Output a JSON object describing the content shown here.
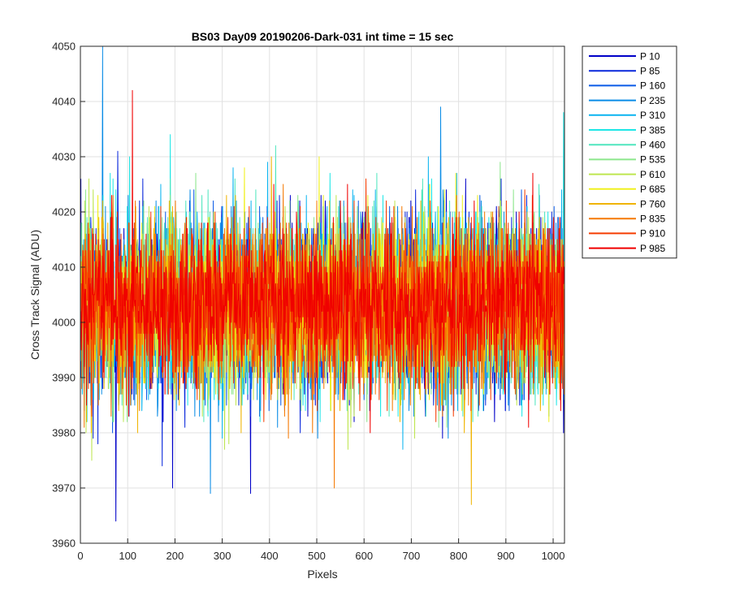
{
  "chart_data": {
    "type": "line",
    "title": "BS03 Day09 20190206-Dark-031 int time = 15 sec",
    "xlabel": "Pixels",
    "ylabel": "Cross Track Signal (ADU)",
    "xlim": [
      0,
      1024
    ],
    "ylim": [
      3960,
      4050
    ],
    "x_ticks": [
      "0",
      "100",
      "200",
      "300",
      "400",
      "500",
      "600",
      "700",
      "800",
      "900",
      "1000"
    ],
    "y_ticks": [
      "3960",
      "3970",
      "3980",
      "3990",
      "4000",
      "4010",
      "4020",
      "4030",
      "4040",
      "4050"
    ],
    "grid": true,
    "legend_position": "outside-top-right",
    "n_points_per_series": 1024,
    "series": [
      {
        "name": "P 10",
        "color": "#0000c8",
        "mean": 4003,
        "sd": 8.2
      },
      {
        "name": "P 85",
        "color": "#0a28dc",
        "mean": 4003,
        "sd": 8.0
      },
      {
        "name": "P 160",
        "color": "#0a5ae6",
        "mean": 4003,
        "sd": 8.0
      },
      {
        "name": "P 235",
        "color": "#0a8ce6",
        "mean": 4003,
        "sd": 7.9
      },
      {
        "name": "P 310",
        "color": "#0ab4f0",
        "mean": 4003,
        "sd": 7.8
      },
      {
        "name": "P 385",
        "color": "#1ee6e6",
        "mean": 4003,
        "sd": 7.7
      },
      {
        "name": "P 460",
        "color": "#50e6be",
        "mean": 4003,
        "sd": 7.6
      },
      {
        "name": "P 535",
        "color": "#8ce68c",
        "mean": 4003,
        "sd": 7.6
      },
      {
        "name": "P 610",
        "color": "#bee650",
        "mean": 4003,
        "sd": 7.6
      },
      {
        "name": "P 685",
        "color": "#f0f01e",
        "mean": 4003,
        "sd": 7.6
      },
      {
        "name": "P 760",
        "color": "#f0b400",
        "mean": 4003,
        "sd": 7.6
      },
      {
        "name": "P 835",
        "color": "#f57800",
        "mean": 4003,
        "sd": 7.6
      },
      {
        "name": "P 910",
        "color": "#f53c00",
        "mean": 4003,
        "sd": 7.6
      },
      {
        "name": "P 985",
        "color": "#f00000",
        "mean": 4003,
        "sd": 7.0
      }
    ],
    "notable_peaks": [
      {
        "series": "P 235",
        "x": 47,
        "y": 4050
      },
      {
        "series": "P 985",
        "x": 110,
        "y": 4042
      },
      {
        "series": "P 10",
        "x": 75,
        "y": 3964
      },
      {
        "series": "P 385",
        "x": 1022,
        "y": 4038
      },
      {
        "series": "P 760",
        "x": 827,
        "y": 3967
      },
      {
        "series": "P 235",
        "x": 275,
        "y": 3969
      },
      {
        "series": "P 235",
        "x": 762,
        "y": 4039
      },
      {
        "series": "P 835",
        "x": 537,
        "y": 3970
      }
    ]
  }
}
